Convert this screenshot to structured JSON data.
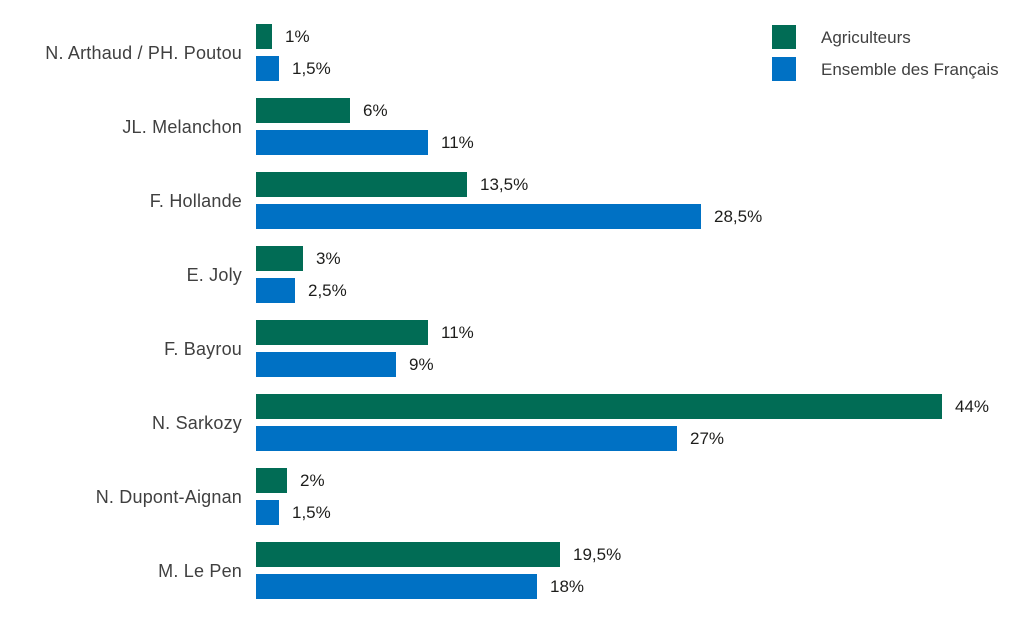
{
  "chart_data": {
    "type": "bar",
    "orientation": "horizontal",
    "unit": "%",
    "title": "",
    "xlabel": "",
    "ylabel": "",
    "xlim": [
      0,
      45
    ],
    "grid": false,
    "value_labels": true,
    "legend_position": "top-right",
    "categories": [
      "N. Arthaud / PH. Poutou",
      "JL. Melanchon",
      "F. Hollande",
      "E. Joly",
      "F. Bayrou",
      "N. Sarkozy",
      "N. Dupont-Aignan",
      "M. Le Pen"
    ],
    "series": [
      {
        "name": "Agriculteurs",
        "slug": "agriculteurs",
        "color": "#016C55",
        "values": [
          1,
          6,
          13.5,
          3,
          11,
          44,
          2,
          19.5
        ],
        "labels": [
          "1%",
          "6%",
          "13,5%",
          "3%",
          "11%",
          "44%",
          "2%",
          "19,5%"
        ]
      },
      {
        "name": "Ensemble des Français",
        "slug": "ensemble-des-francais",
        "color": "#0071C4",
        "values": [
          1.5,
          11,
          28.5,
          2.5,
          9,
          27,
          1.5,
          18
        ],
        "labels": [
          "1,5%",
          "11%",
          "28,5%",
          "2,5%",
          "9%",
          "27%",
          "1,5%",
          "18%"
        ]
      }
    ]
  },
  "legend": {
    "items": [
      {
        "label": "Agriculteurs",
        "color": "#016C55"
      },
      {
        "label": "Ensemble des Français",
        "color": "#0071C4"
      }
    ]
  }
}
